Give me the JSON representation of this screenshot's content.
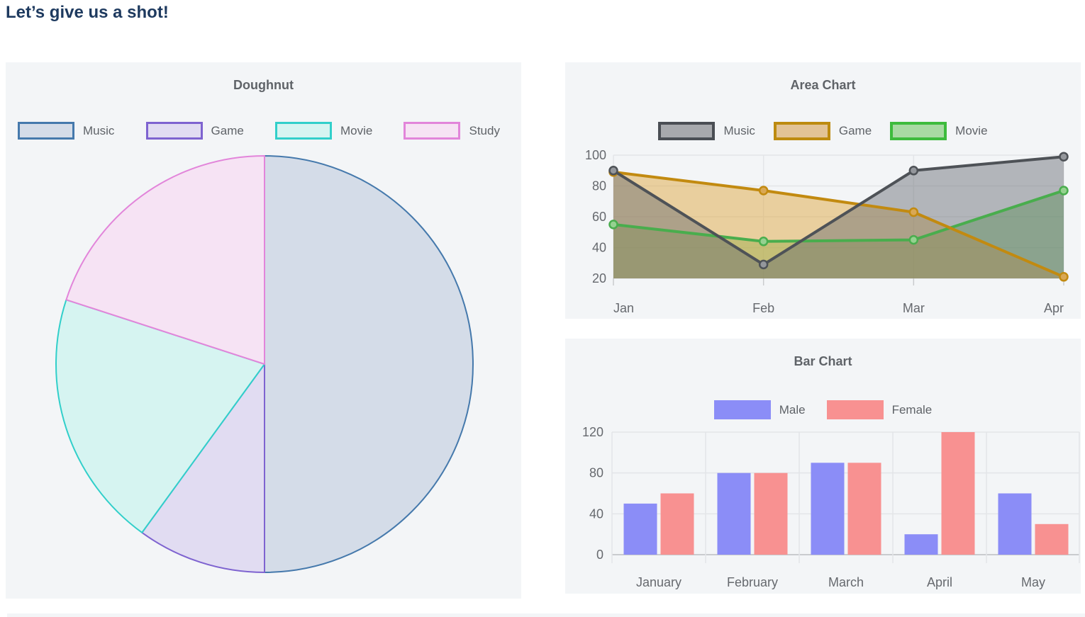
{
  "page": {
    "heading": "Let’s give us a shot!"
  },
  "chart_data": [
    {
      "type": "pie",
      "title": "Doughnut",
      "labels": [
        "Music",
        "Game",
        "Movie",
        "Study"
      ],
      "values": [
        50,
        10,
        20,
        20
      ],
      "unit": "percent-of-circle",
      "start_angle": "top",
      "direction": "clockwise",
      "legend_position": "top",
      "colors": [
        {
          "fill": "#d4dce8",
          "border": "#4579ac"
        },
        {
          "fill": "#e1dcf2",
          "border": "#7e63d0"
        },
        {
          "fill": "#d6f4f1",
          "border": "#31cfca"
        },
        {
          "fill": "#f6e3f4",
          "border": "#e285da"
        }
      ]
    },
    {
      "type": "area",
      "title": "Area Chart",
      "x": [
        "Jan",
        "Feb",
        "Mar",
        "Apr"
      ],
      "series": [
        {
          "name": "Music",
          "values": [
            90,
            29,
            90,
            99
          ],
          "line": "#4e5257",
          "fill": "rgba(100,104,110,0.45)",
          "marker": "#94979c"
        },
        {
          "name": "Game",
          "values": [
            89,
            77,
            63,
            21
          ],
          "line": "#c28a10",
          "fill": "rgba(224,170,70,0.5)",
          "marker": "#d9a855"
        },
        {
          "name": "Movie",
          "values": [
            55,
            44,
            45,
            77
          ],
          "line": "#49ad4d",
          "fill": "rgba(100,180,90,0.5)",
          "marker": "#95d190"
        }
      ],
      "ylim": [
        20,
        100
      ],
      "yticks": [
        20,
        40,
        60,
        80,
        100
      ],
      "grid": true,
      "legend_position": "top",
      "legend_swatches": [
        {
          "fill": "#a7a9ad",
          "border": "#4a4e54"
        },
        {
          "fill": "#e2c396",
          "border": "#bd8b10"
        },
        {
          "fill": "#a8daa3",
          "border": "#3dbb3d"
        }
      ]
    },
    {
      "type": "bar",
      "title": "Bar Chart",
      "categories": [
        "January",
        "February",
        "March",
        "April",
        "May"
      ],
      "series": [
        {
          "name": "Male",
          "values": [
            50,
            80,
            90,
            20,
            60
          ],
          "color": "#8b8df7"
        },
        {
          "name": "Female",
          "values": [
            60,
            80,
            90,
            120,
            30
          ],
          "color": "#f89191"
        }
      ],
      "ylim": [
        0,
        120
      ],
      "yticks": [
        0,
        40,
        80,
        120
      ],
      "grid": true,
      "legend_position": "top"
    }
  ],
  "style": {
    "panel_bg": "#f3f5f7",
    "title_color": "#5f6368",
    "tick_color": "#66696e",
    "grid_color": "#e3e5e8",
    "baseline_color": "#c9cbce",
    "heading_color": "#1e3a5f"
  }
}
